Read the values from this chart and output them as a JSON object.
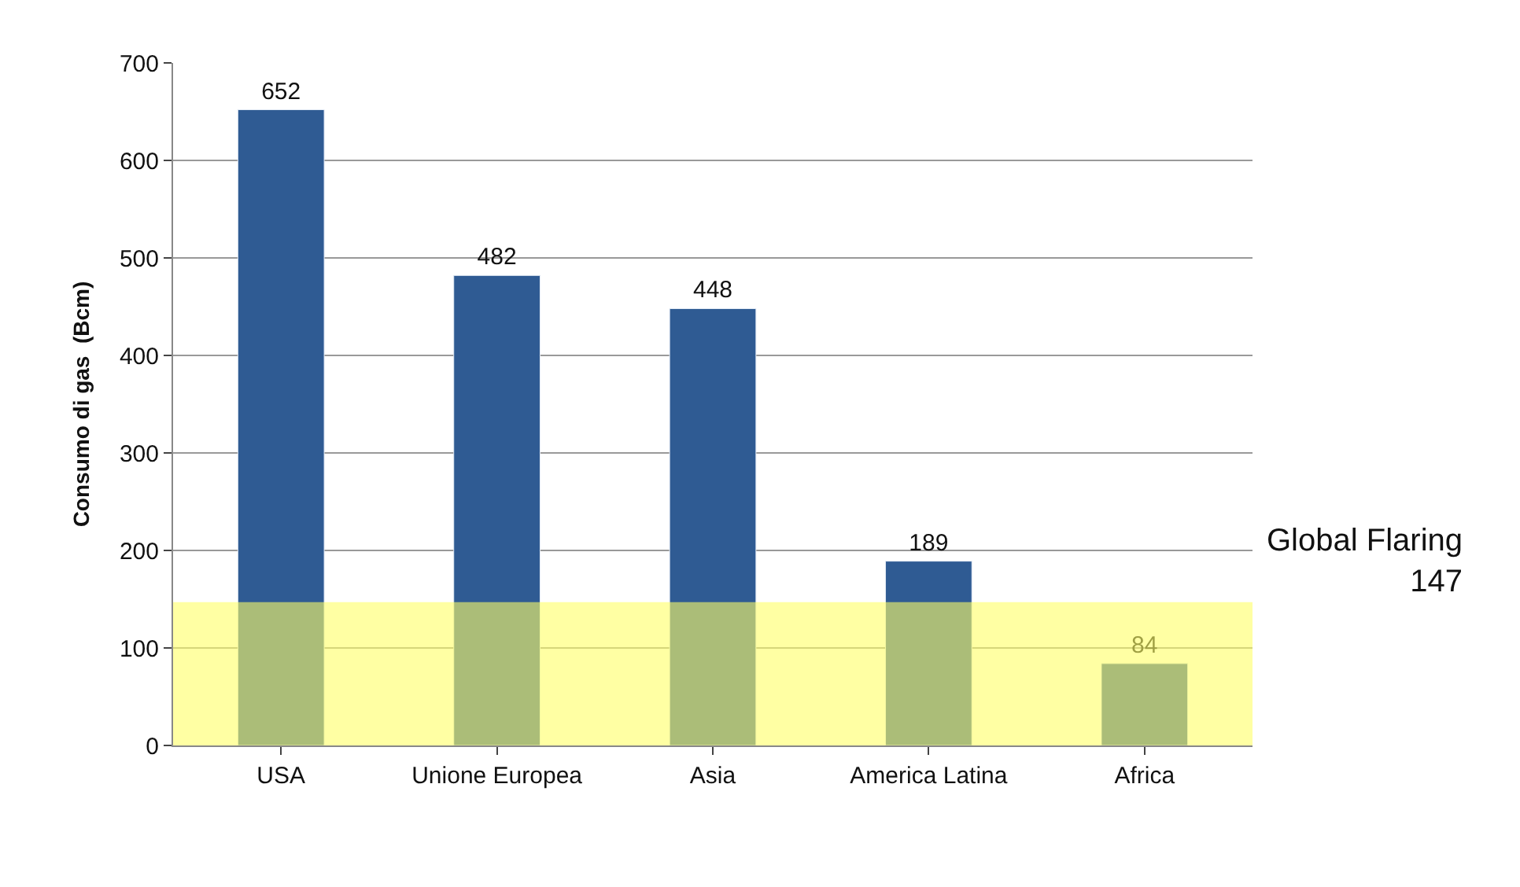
{
  "chart_data": {
    "type": "bar",
    "ylabel": "Consumo di gas  (Bcm)",
    "categories": [
      "USA",
      "Unione Europea",
      "Asia",
      "America Latina",
      "Africa"
    ],
    "values": [
      652,
      482,
      448,
      189,
      84
    ],
    "color": "#2f5b93",
    "data_labels": true,
    "ylim": [
      0,
      700
    ],
    "yticks": [
      0,
      100,
      200,
      300,
      400,
      500,
      600,
      700
    ],
    "grid": "y",
    "bands": [
      {
        "axis": "y",
        "from": 0,
        "to": 147,
        "label": "Global Flaring\n147",
        "color": "#ffff66"
      }
    ]
  }
}
